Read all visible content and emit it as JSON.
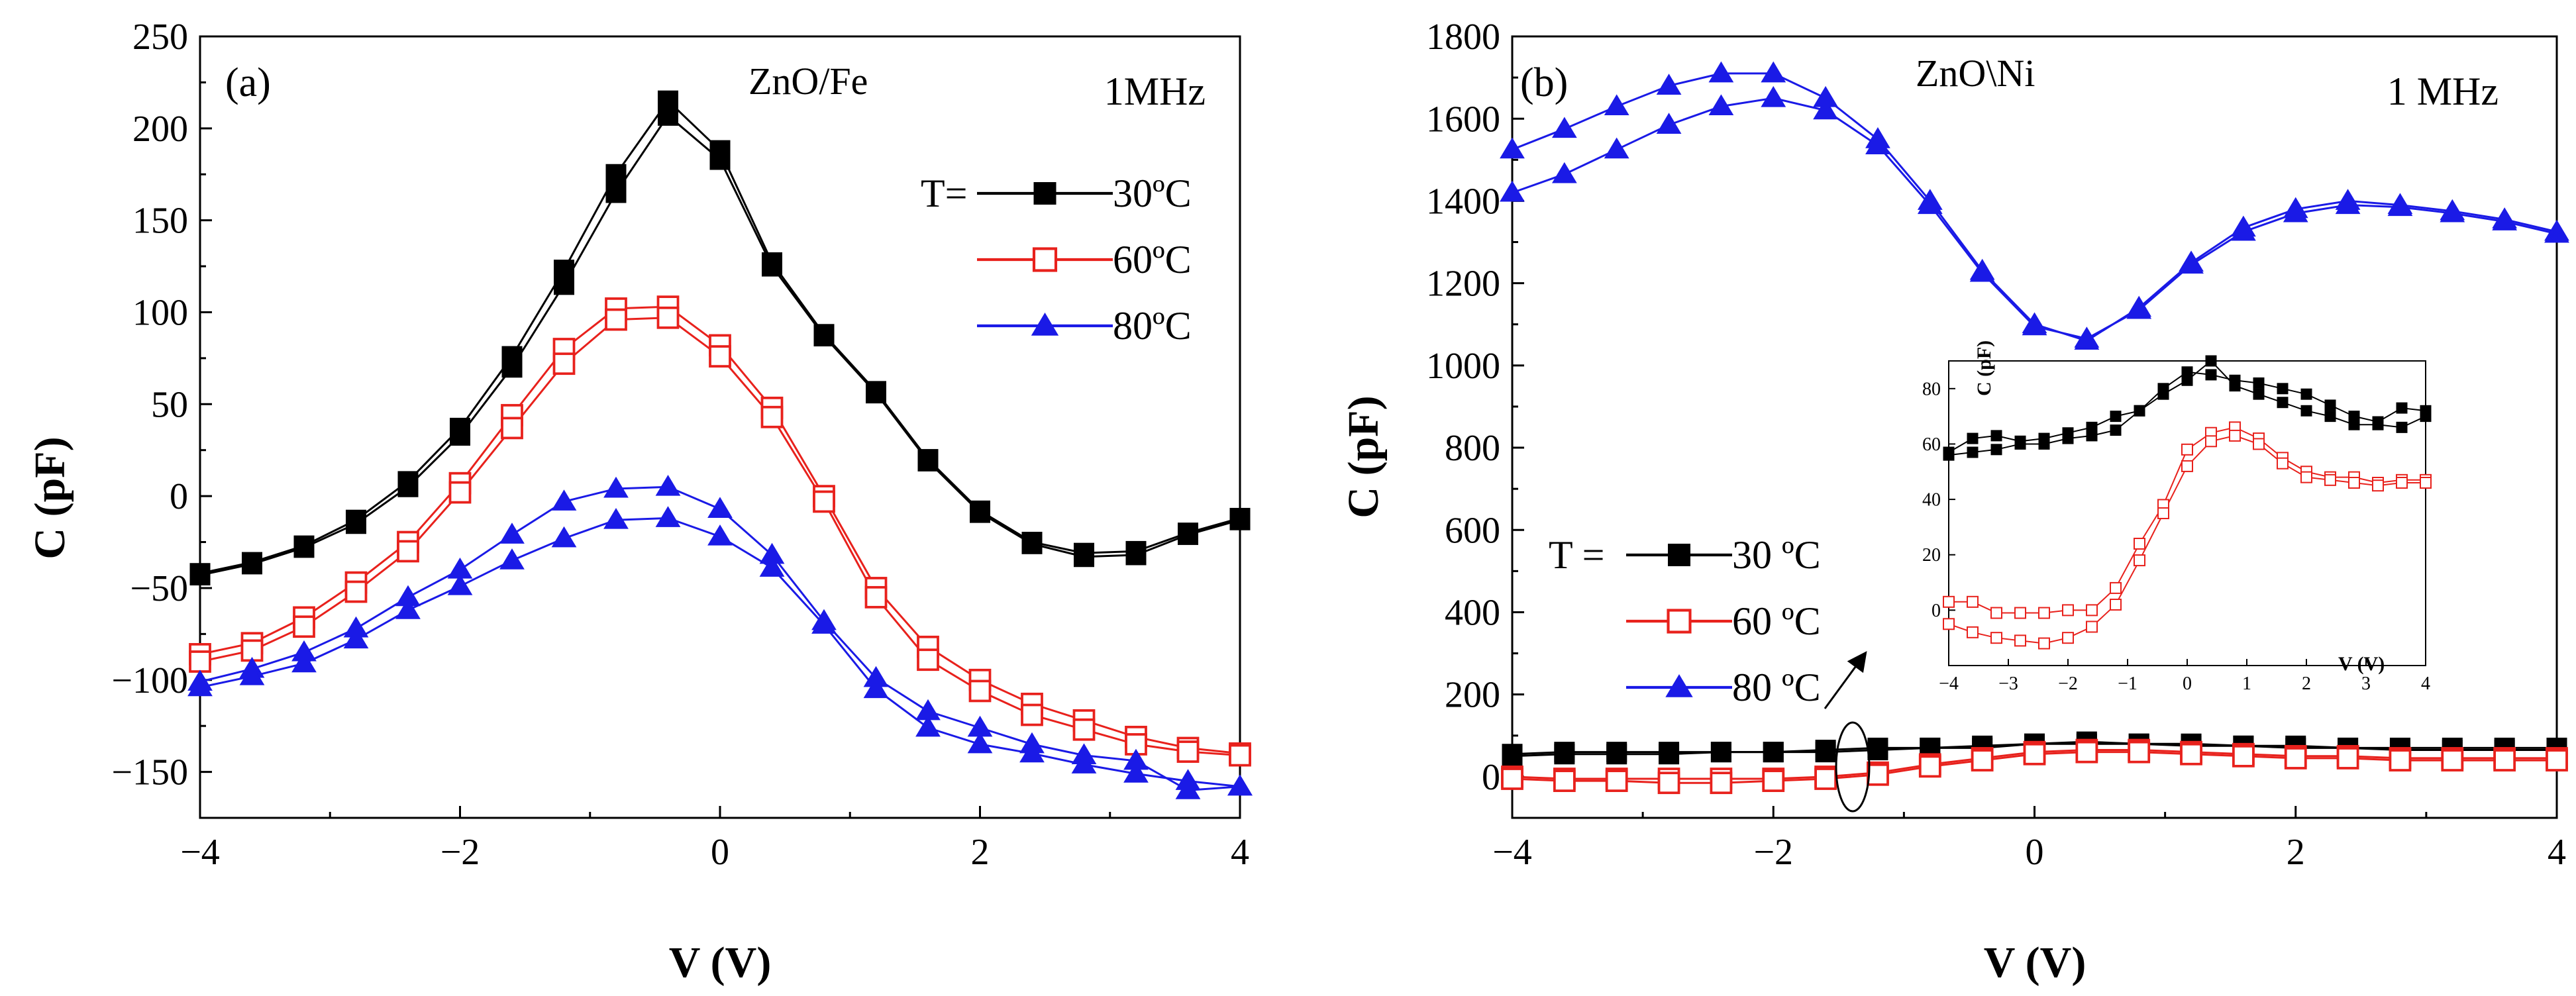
{
  "chart_data": [
    {
      "id": "a",
      "type": "line",
      "panel_label": "(a)",
      "material": "ZnO/Fe",
      "frequency": "1MHz",
      "xlabel": "V (V)",
      "ylabel": "C (pF)",
      "xlim": [
        -4,
        4
      ],
      "ylim": [
        -175,
        250
      ],
      "xticks": [
        -4,
        -2,
        0,
        2,
        4
      ],
      "xtick_labels": [
        "−4",
        "−2",
        "0",
        "2",
        "4"
      ],
      "yticks": [
        -150,
        -100,
        -50,
        0,
        50,
        100,
        150,
        200,
        250
      ],
      "ytick_labels": [
        "−150",
        "−100",
        "−50",
        "0",
        "50",
        "100",
        "150",
        "200",
        "250"
      ],
      "legend": {
        "prefix": "T=",
        "position": "right, upper-middle",
        "entries": [
          "30ºC",
          "60ºC",
          "80ºC"
        ]
      },
      "x": [
        -4,
        -3.6,
        -3.2,
        -2.8,
        -2.4,
        -2,
        -1.6,
        -1.2,
        -0.8,
        -0.4,
        0,
        0.4,
        0.8,
        1.2,
        1.6,
        2,
        2.4,
        2.8,
        3.2,
        3.6,
        4
      ],
      "series": [
        {
          "name": "30ºC",
          "color": "#000000",
          "marker": "square-filled",
          "forward": [
            -42,
            -36,
            -27,
            -13,
            8,
            37,
            76,
            123,
            175,
            215,
            188,
            127,
            88,
            57,
            20,
            -8,
            -25,
            -31,
            -30,
            -20,
            -12
          ],
          "reverse": [
            -43,
            -37,
            -28,
            -15,
            5,
            33,
            70,
            115,
            165,
            207,
            183,
            125,
            87,
            56,
            19,
            -9,
            -26,
            -33,
            -32,
            -21,
            -13
          ]
        },
        {
          "name": "60ºC",
          "color": "#e8211c",
          "marker": "square-open",
          "forward": [
            -86,
            -80,
            -66,
            -47,
            -25,
            7,
            44,
            80,
            102,
            103,
            82,
            48,
            0,
            -50,
            -82,
            -100,
            -113,
            -122,
            -131,
            -137,
            -140
          ],
          "reverse": [
            -90,
            -84,
            -71,
            -52,
            -30,
            2,
            37,
            72,
            96,
            97,
            76,
            43,
            -3,
            -55,
            -89,
            -106,
            -119,
            -127,
            -135,
            -139,
            -141
          ]
        },
        {
          "name": "80ºC",
          "color": "#1a1ae6",
          "marker": "triangle-filled",
          "forward": [
            -101,
            -94,
            -85,
            -72,
            -55,
            -40,
            -21,
            -3,
            4,
            5,
            -7,
            -32,
            -68,
            -99,
            -117,
            -126,
            -135,
            -141,
            -144,
            -160,
            -158
          ],
          "reverse": [
            -104,
            -98,
            -91,
            -78,
            -62,
            -49,
            -35,
            -23,
            -13,
            -12,
            -22,
            -39,
            -70,
            -105,
            -126,
            -135,
            -140,
            -146,
            -151,
            -155,
            -158
          ]
        }
      ]
    },
    {
      "id": "b",
      "type": "line",
      "panel_label": "(b)",
      "material": "ZnO\\Ni",
      "frequency": "1 MHz",
      "xlabel": "V (V)",
      "ylabel": "C (pF)",
      "xlim": [
        -4,
        4
      ],
      "ylim": [
        -100,
        1800
      ],
      "xticks": [
        -4,
        -2,
        0,
        2,
        4
      ],
      "xtick_labels": [
        "−4",
        "−2",
        "0",
        "2",
        "4"
      ],
      "yticks": [
        0,
        200,
        400,
        600,
        800,
        1000,
        1200,
        1400,
        1600,
        1800
      ],
      "ytick_labels": [
        "0",
        "200",
        "400",
        "600",
        "800",
        "1000",
        "1200",
        "1400",
        "1600",
        "1800"
      ],
      "legend": {
        "prefix": "T =",
        "position": "left, lower-middle",
        "entries": [
          "30 ºC",
          "60 ºC",
          "80 ºC"
        ]
      },
      "x": [
        -4,
        -3.6,
        -3.2,
        -2.8,
        -2.4,
        -2,
        -1.6,
        -1.2,
        -0.8,
        -0.4,
        0,
        0.4,
        0.8,
        1.2,
        1.6,
        2,
        2.4,
        2.8,
        3.2,
        3.6,
        4
      ],
      "series": [
        {
          "name": "30 ºC",
          "color": "#000000",
          "marker": "square-filled",
          "forward": [
            55,
            60,
            60,
            60,
            60,
            60,
            65,
            70,
            70,
            70,
            80,
            85,
            80,
            80,
            75,
            75,
            70,
            70,
            70,
            70,
            70
          ],
          "reverse": [
            50,
            55,
            55,
            55,
            60,
            60,
            60,
            65,
            70,
            75,
            80,
            80,
            80,
            75,
            75,
            70,
            70,
            65,
            65,
            65,
            65
          ]
        },
        {
          "name": "60 ºC",
          "color": "#e8211c",
          "marker": "square-open",
          "forward": [
            0,
            -5,
            -5,
            -5,
            -5,
            -5,
            0,
            10,
            30,
            45,
            60,
            65,
            65,
            60,
            55,
            50,
            50,
            45,
            45,
            45,
            45
          ],
          "reverse": [
            -5,
            -10,
            -10,
            -15,
            -15,
            -10,
            -5,
            5,
            25,
            40,
            55,
            60,
            60,
            55,
            50,
            45,
            45,
            40,
            40,
            40,
            40
          ]
        },
        {
          "name": "80 ºC",
          "color": "#1a1ae6",
          "marker": "triangle-filled",
          "forward": [
            1525,
            1575,
            1630,
            1680,
            1710,
            1710,
            1650,
            1550,
            1400,
            1230,
            1100,
            1060,
            1140,
            1250,
            1335,
            1380,
            1400,
            1390,
            1375,
            1355,
            1325
          ],
          "reverse": [
            1420,
            1465,
            1525,
            1585,
            1630,
            1650,
            1620,
            1535,
            1390,
            1225,
            1095,
            1065,
            1135,
            1245,
            1325,
            1370,
            1390,
            1385,
            1370,
            1350,
            1320
          ]
        }
      ],
      "inset": {
        "xlabel": "V (V)",
        "ylabel": "C (pF)",
        "xlim": [
          -4,
          4
        ],
        "ylim": [
          -20,
          90
        ],
        "xticks": [
          -4,
          -3,
          -2,
          -1,
          0,
          1,
          2,
          3,
          4
        ],
        "xtick_labels": [
          "−4",
          "−3",
          "−2",
          "−1",
          "0",
          "1",
          "2",
          "3",
          "4"
        ],
        "yticks": [
          0,
          20,
          40,
          60,
          80
        ],
        "ytick_labels": [
          "0",
          "20",
          "40",
          "60",
          "80"
        ],
        "x": [
          -4,
          -3.6,
          -3.2,
          -2.8,
          -2.4,
          -2,
          -1.6,
          -1.2,
          -0.8,
          -0.4,
          0,
          0.4,
          0.8,
          1.2,
          1.6,
          2,
          2.4,
          2.8,
          3.2,
          3.6,
          4
        ],
        "series": [
          {
            "name": "30 ºC",
            "color": "#000000",
            "marker": "square-filled",
            "forward": [
              57,
              62,
              63,
              61,
              62,
              64,
              66,
              70,
              72,
              80,
              86,
              85,
              83,
              82,
              80,
              78,
              74,
              70,
              68,
              73,
              72
            ],
            "reverse": [
              56,
              57,
              58,
              60,
              60,
              62,
              63,
              65,
              72,
              78,
              83,
              90,
              81,
              78,
              75,
              72,
              70,
              67,
              67,
              66,
              70
            ]
          },
          {
            "name": "60 ºC",
            "color": "#e8211c",
            "marker": "square-open",
            "forward": [
              3,
              3,
              -1,
              -1,
              -1,
              0,
              0,
              8,
              24,
              38,
              58,
              64,
              66,
              62,
              55,
              50,
              48,
              48,
              46,
              47,
              47
            ],
            "reverse": [
              -5,
              -8,
              -10,
              -11,
              -12,
              -10,
              -6,
              2,
              18,
              35,
              52,
              61,
              63,
              60,
              53,
              48,
              47,
              46,
              45,
              46,
              46
            ]
          }
        ]
      }
    }
  ]
}
